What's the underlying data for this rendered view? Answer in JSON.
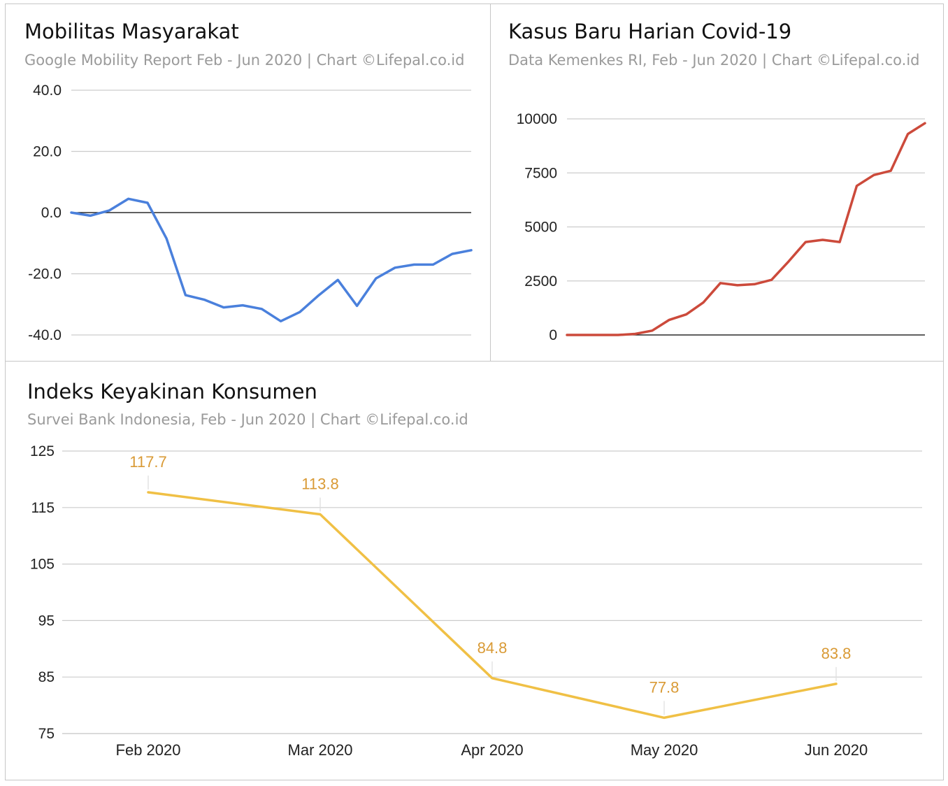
{
  "colors": {
    "mobility_line": "#4a80dc",
    "covid_line": "#cc4a3b",
    "ikk_line": "#f0c045",
    "ikk_labels": "#d99a35",
    "grid": "#cccccc",
    "baseline": "#000000"
  },
  "panels": {
    "mobility": {
      "title": "Mobilitas Masyarakat",
      "subtitle": "Google Mobility Report Feb - Jun 2020 | Chart ©Lifepal.co.id"
    },
    "covid": {
      "title": "Kasus Baru Harian Covid-19",
      "subtitle": "Data Kemenkes RI, Feb - Jun 2020 | Chart ©Lifepal.co.id"
    },
    "ikk": {
      "title": "Indeks Keyakinan Konsumen",
      "subtitle": "Survei Bank Indonesia, Feb - Jun 2020 | Chart ©Lifepal.co.id"
    }
  },
  "chart_data": [
    {
      "id": "mobility",
      "type": "line",
      "title": "Mobilitas Masyarakat",
      "subtitle": "Google Mobility Report Feb - Jun 2020 | Chart ©Lifepal.co.id",
      "xlabel": "",
      "ylabel": "",
      "ylim": [
        -40,
        40
      ],
      "yticks": [
        40,
        20,
        0,
        -20,
        -40
      ],
      "ytick_labels": [
        "40.0",
        "20.0",
        "0.0",
        "-20.0",
        "-40.0"
      ],
      "x_labels_shown": false,
      "grid": true,
      "legend": "none",
      "series": [
        {
          "values": [
            0,
            -1,
            0.7,
            4.5,
            3.2,
            -8.5,
            -27,
            -28.5,
            -31,
            -30.3,
            -31.5,
            -35.5,
            -32.5,
            -27,
            -22,
            -30.5,
            -21.5,
            -18,
            -17,
            -17,
            -13.5,
            -12.3
          ]
        }
      ]
    },
    {
      "id": "covid",
      "type": "line",
      "title": "Kasus Baru Harian Covid-19",
      "subtitle": "Data Kemenkes RI, Feb - Jun 2020 | Chart ©Lifepal.co.id",
      "xlabel": "",
      "ylabel": "",
      "ylim": [
        0,
        10000
      ],
      "yticks": [
        0,
        2500,
        5000,
        7500,
        10000
      ],
      "ytick_labels": [
        "0",
        "2500",
        "5000",
        "7500",
        "10000"
      ],
      "x_labels_shown": false,
      "grid": true,
      "legend": "none",
      "series": [
        {
          "values": [
            0,
            0,
            0,
            0,
            50,
            200,
            700,
            950,
            1500,
            2400,
            2300,
            2350,
            2550,
            3400,
            4300,
            4400,
            4300,
            6900,
            7400,
            7600,
            9300,
            9800
          ]
        }
      ]
    },
    {
      "id": "ikk",
      "type": "line",
      "title": "Indeks Keyakinan Konsumen",
      "subtitle": "Survei Bank Indonesia, Feb - Jun 2020 | Chart ©Lifepal.co.id",
      "xlabel": "",
      "ylabel": "",
      "ylim": [
        75,
        125
      ],
      "yticks": [
        75,
        85,
        95,
        105,
        115,
        125
      ],
      "ytick_labels": [
        "75",
        "85",
        "95",
        "105",
        "115",
        "125"
      ],
      "categories": [
        "Feb 2020",
        "Mar 2020",
        "Apr 2020",
        "May 2020",
        "Jun 2020"
      ],
      "grid": true,
      "legend": "none",
      "series": [
        {
          "values": [
            117.7,
            113.8,
            84.8,
            77.8,
            83.8
          ],
          "data_labels": [
            "117.7",
            "113.8",
            "84.8",
            "77.8",
            "83.8"
          ]
        }
      ]
    }
  ]
}
